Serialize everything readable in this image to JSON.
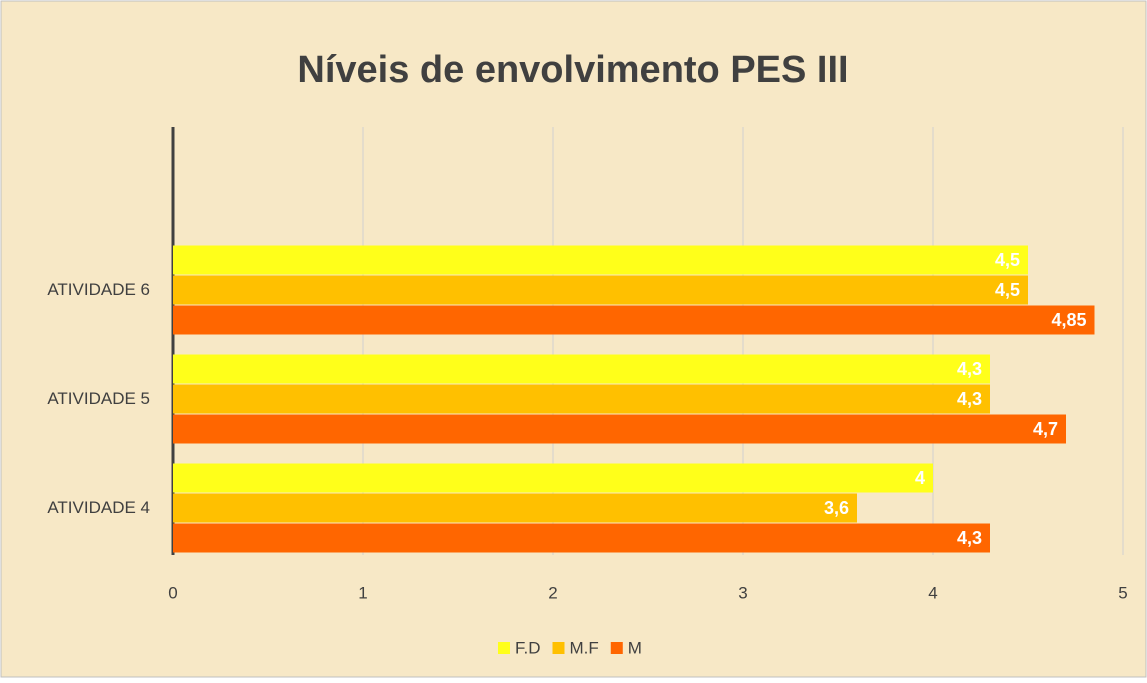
{
  "chart_data": {
    "type": "bar",
    "orientation": "horizontal",
    "title": "Níveis de envolvimento PES III",
    "categories": [
      "ATIVIDADE 4",
      "ATIVIDADE 5",
      "ATIVIDADE 6"
    ],
    "series": [
      {
        "name": "F.D",
        "color": "#ffff1a",
        "values": [
          4,
          4.3,
          4.5
        ],
        "value_labels": [
          "4",
          "4,3",
          "4,5"
        ]
      },
      {
        "name": "M.F",
        "color": "#ffc000",
        "values": [
          3.6,
          4.3,
          4.5
        ],
        "value_labels": [
          "3,6",
          "4,3",
          "4,5"
        ]
      },
      {
        "name": "M",
        "color": "#ff6600",
        "values": [
          4.3,
          4.7,
          4.85
        ],
        "value_labels": [
          "4,3",
          "4,7",
          "4,85"
        ]
      }
    ],
    "xlim": [
      0,
      5
    ],
    "xticks": [
      0,
      1,
      2,
      3,
      4,
      5
    ],
    "grid": true,
    "legend": "bottom"
  }
}
